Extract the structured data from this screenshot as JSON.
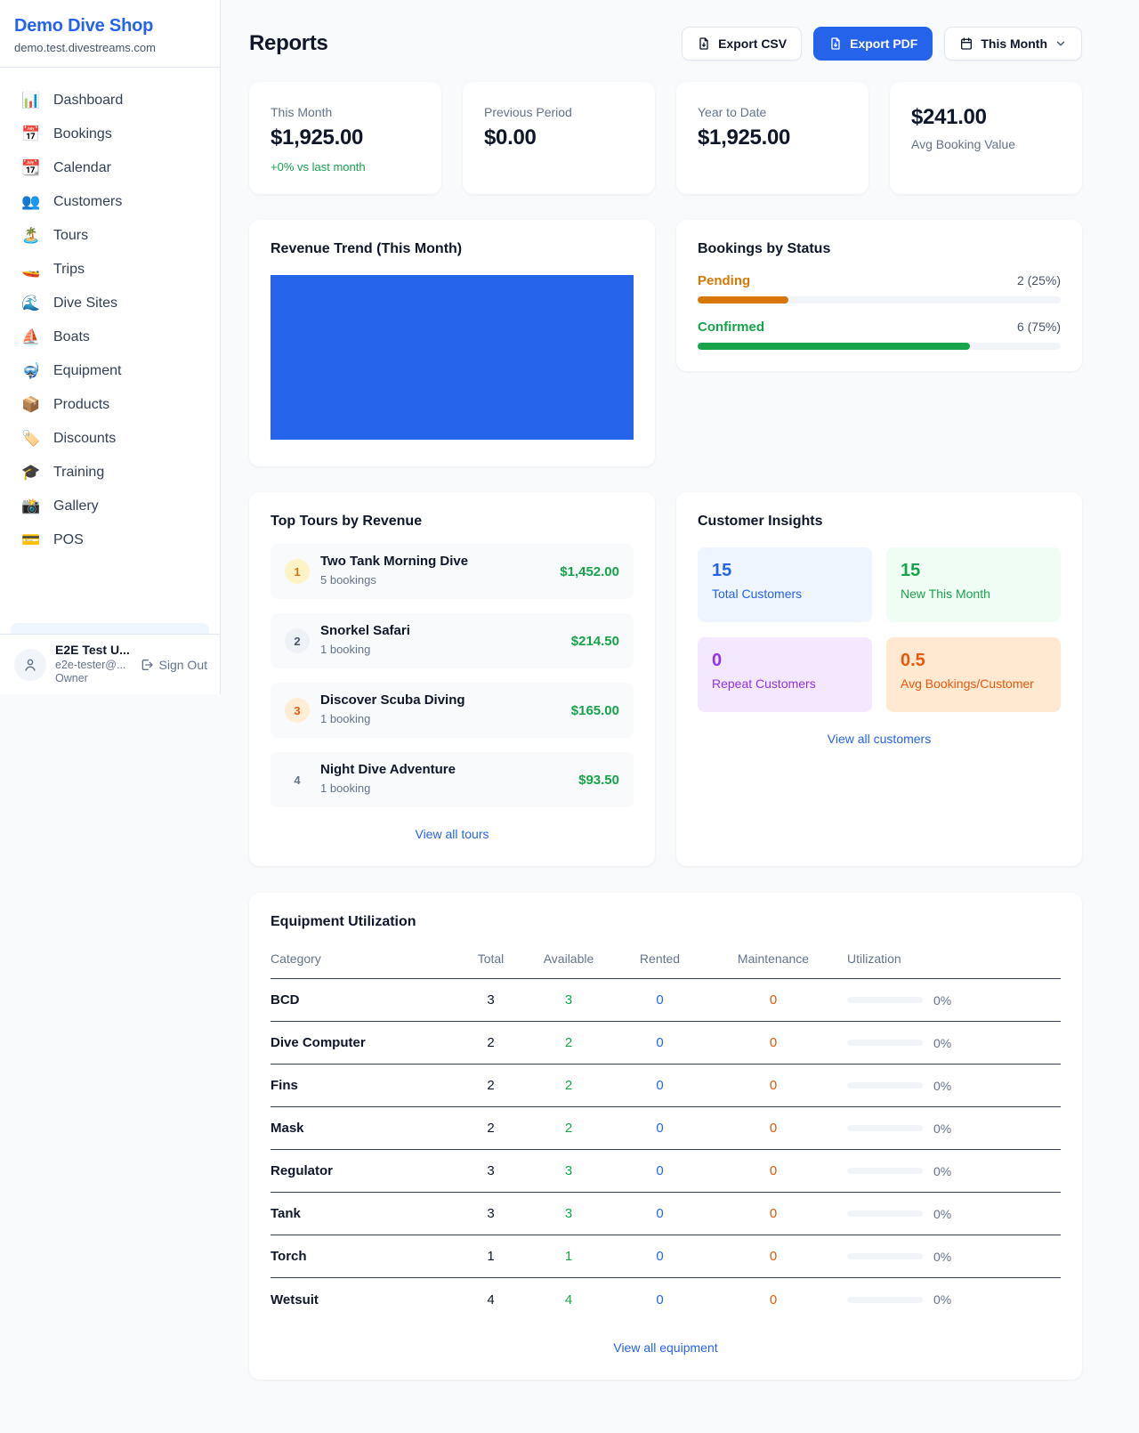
{
  "sidebar": {
    "shop_name": "Demo Dive Shop",
    "shop_domain": "demo.test.divestreams.com",
    "items": [
      {
        "label": "Dashboard",
        "icon": "📊"
      },
      {
        "label": "Bookings",
        "icon": "📅"
      },
      {
        "label": "Calendar",
        "icon": "📆"
      },
      {
        "label": "Customers",
        "icon": "👥"
      },
      {
        "label": "Tours",
        "icon": "🏝️"
      },
      {
        "label": "Trips",
        "icon": "🚤"
      },
      {
        "label": "Dive Sites",
        "icon": "🌊"
      },
      {
        "label": "Boats",
        "icon": "⛵"
      },
      {
        "label": "Equipment",
        "icon": "🤿"
      },
      {
        "label": "Products",
        "icon": "📦"
      },
      {
        "label": "Discounts",
        "icon": "🏷️"
      },
      {
        "label": "Training",
        "icon": "🎓"
      },
      {
        "label": "Gallery",
        "icon": "📸"
      },
      {
        "label": "POS",
        "icon": "💳"
      }
    ],
    "user": {
      "name": "E2E Test U...",
      "email": "e2e-tester@...",
      "role": "Owner",
      "sign_out_label": "Sign Out"
    }
  },
  "header": {
    "title": "Reports",
    "export_csv_label": "Export CSV",
    "export_pdf_label": "Export PDF",
    "period_label": "This Month"
  },
  "stats": {
    "this_month": {
      "label": "This Month",
      "value": "$1,925.00",
      "delta": "+0% vs last month"
    },
    "previous_period": {
      "label": "Previous Period",
      "value": "$0.00"
    },
    "year_to_date": {
      "label": "Year to Date",
      "value": "$1,925.00"
    },
    "avg_booking": {
      "value": "$241.00",
      "label": "Avg Booking Value"
    }
  },
  "revenue_trend": {
    "title": "Revenue Trend (This Month)",
    "bar_color": "#2563eb",
    "chart": {
      "type": "bar",
      "categories": [
        "This Month"
      ],
      "values": [
        1925
      ],
      "note": "single full-width bar"
    }
  },
  "bookings_by_status": {
    "title": "Bookings by Status",
    "rows": [
      {
        "label": "Pending",
        "count_text": "2 (25%)",
        "percent": 25,
        "color": "#d97706"
      },
      {
        "label": "Confirmed",
        "count_text": "6 (75%)",
        "percent": 75,
        "color": "#16a34a"
      }
    ]
  },
  "top_tours": {
    "title": "Top Tours by Revenue",
    "items": [
      {
        "rank": "1",
        "name": "Two Tank Morning Dive",
        "bookings": "5 bookings",
        "revenue": "$1,452.00"
      },
      {
        "rank": "2",
        "name": "Snorkel Safari",
        "bookings": "1 booking",
        "revenue": "$214.50"
      },
      {
        "rank": "3",
        "name": "Discover Scuba Diving",
        "bookings": "1 booking",
        "revenue": "$165.00"
      },
      {
        "rank": "4",
        "name": "Night Dive Adventure",
        "bookings": "1 booking",
        "revenue": "$93.50"
      }
    ],
    "view_all_label": "View all tours"
  },
  "customer_insights": {
    "title": "Customer Insights",
    "tiles": [
      {
        "value": "15",
        "label": "Total Customers",
        "color": "#2563eb",
        "bg": "#eff6ff"
      },
      {
        "value": "15",
        "label": "New This Month",
        "color": "#16a34a",
        "bg": "#f0fdf4"
      },
      {
        "value": "0",
        "label": "Repeat Customers",
        "color": "#9333ea",
        "bg": "#f3e8ff"
      },
      {
        "value": "0.5",
        "label": "Avg Bookings/Customer",
        "color": "#ea580c",
        "bg": "#ffe9d1"
      }
    ],
    "view_all_label": "View all customers"
  },
  "equipment": {
    "title": "Equipment Utilization",
    "columns": [
      "Category",
      "Total",
      "Available",
      "Rented",
      "Maintenance",
      "Utilization"
    ],
    "rows": [
      {
        "category": "BCD",
        "total": "3",
        "available": "3",
        "rented": "0",
        "maintenance": "0",
        "utilization": "0%"
      },
      {
        "category": "Dive Computer",
        "total": "2",
        "available": "2",
        "rented": "0",
        "maintenance": "0",
        "utilization": "0%"
      },
      {
        "category": "Fins",
        "total": "2",
        "available": "2",
        "rented": "0",
        "maintenance": "0",
        "utilization": "0%"
      },
      {
        "category": "Mask",
        "total": "2",
        "available": "2",
        "rented": "0",
        "maintenance": "0",
        "utilization": "0%"
      },
      {
        "category": "Regulator",
        "total": "3",
        "available": "3",
        "rented": "0",
        "maintenance": "0",
        "utilization": "0%"
      },
      {
        "category": "Tank",
        "total": "3",
        "available": "3",
        "rented": "0",
        "maintenance": "0",
        "utilization": "0%"
      },
      {
        "category": "Torch",
        "total": "1",
        "available": "1",
        "rented": "0",
        "maintenance": "0",
        "utilization": "0%"
      },
      {
        "category": "Wetsuit",
        "total": "4",
        "available": "4",
        "rented": "0",
        "maintenance": "0",
        "utilization": "0%"
      }
    ],
    "view_all_label": "View all equipment"
  },
  "colors": {
    "primary": "#2563eb",
    "success": "#16a34a",
    "warning": "#d97706",
    "danger": "#ea580c",
    "purple": "#9333ea"
  }
}
